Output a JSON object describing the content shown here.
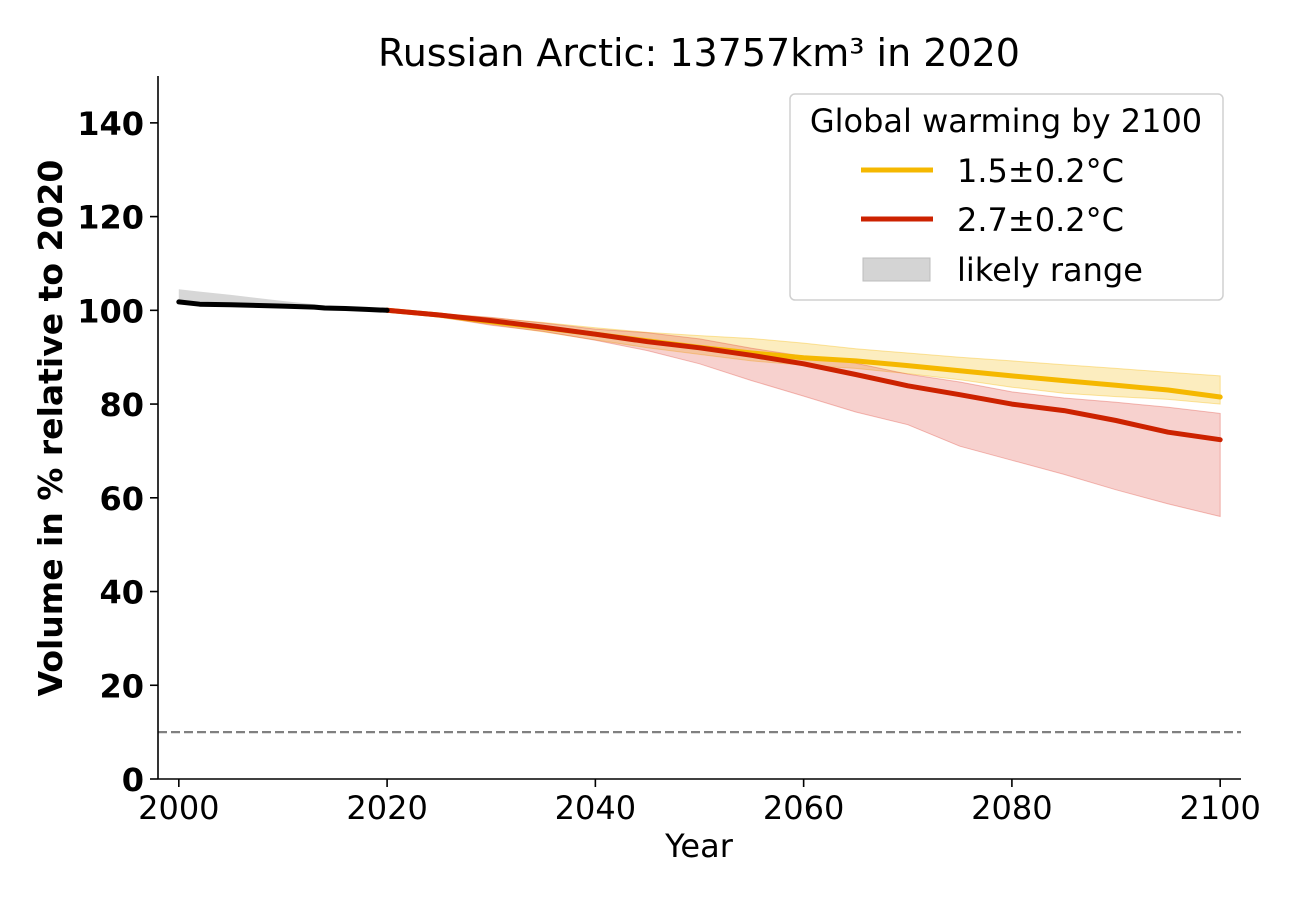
{
  "chart_data": {
    "type": "line",
    "title": "Russian Arctic: 13757km³ in 2020",
    "xlabel": "Year",
    "ylabel": "Volume in % relative to 2020",
    "xlim": [
      1998,
      2102
    ],
    "ylim": [
      0,
      150
    ],
    "xticks": [
      2000,
      2020,
      2040,
      2060,
      2080,
      2100
    ],
    "yticks": [
      0,
      20,
      40,
      60,
      80,
      100,
      120,
      140
    ],
    "grid": false,
    "legend": {
      "title": "Global warming by 2100",
      "position": "top-right",
      "entries": [
        {
          "label": "1.5±0.2°C",
          "color": "#f5b800",
          "kind": "line"
        },
        {
          "label": "2.7±0.2°C",
          "color": "#cc2200",
          "kind": "line"
        },
        {
          "label": "likely range",
          "color": "#d4d4d4",
          "kind": "patch"
        }
      ]
    },
    "reference_line": {
      "y": 10,
      "style": "dashed",
      "color": "#808080"
    },
    "historical": {
      "color": "#000000",
      "band_color": "#b0b0b0",
      "x": [
        2000,
        2002,
        2005,
        2010,
        2013,
        2014,
        2016,
        2018,
        2020
      ],
      "y": [
        101.8,
        101.3,
        101.2,
        100.9,
        100.7,
        100.5,
        100.4,
        100.2,
        100.0
      ],
      "lower": [
        101.5,
        101.2,
        101.1,
        100.9,
        100.6,
        100.5,
        100.4,
        100.2,
        100.0
      ],
      "upper": [
        104.5,
        104.0,
        103.3,
        102.0,
        101.3,
        101.0,
        100.8,
        100.4,
        100.0
      ]
    },
    "series": [
      {
        "name": "1.5±0.2°C",
        "color": "#f5b800",
        "band_color": "#f5b800",
        "x": [
          2020,
          2025,
          2030,
          2035,
          2040,
          2045,
          2050,
          2055,
          2060,
          2065,
          2070,
          2075,
          2080,
          2085,
          2090,
          2095,
          2100
        ],
        "y": [
          100,
          99.0,
          97.6,
          96.3,
          94.9,
          93.5,
          92.1,
          90.9,
          89.9,
          89.2,
          88.2,
          87.1,
          86.0,
          85.0,
          84.0,
          83.0,
          81.5
        ],
        "lower": [
          100,
          98.5,
          97.0,
          95.4,
          93.7,
          92.0,
          90.6,
          89.2,
          88.3,
          87.6,
          86.5,
          85.2,
          83.6,
          82.3,
          81.6,
          81.0,
          80.0
        ],
        "upper": [
          100,
          99.4,
          98.4,
          97.4,
          96.3,
          95.3,
          94.6,
          94.0,
          93.0,
          91.8,
          90.9,
          90.0,
          89.2,
          88.4,
          87.6,
          86.8,
          86.0
        ]
      },
      {
        "name": "2.7±0.2°C",
        "color": "#cc2200",
        "band_color": "#e0483a",
        "x": [
          2020,
          2025,
          2030,
          2035,
          2040,
          2045,
          2050,
          2055,
          2060,
          2065,
          2070,
          2075,
          2080,
          2085,
          2090,
          2095,
          2100
        ],
        "y": [
          100,
          99.0,
          97.8,
          96.4,
          94.9,
          93.3,
          92.0,
          90.4,
          88.6,
          86.3,
          83.9,
          82.0,
          80.0,
          78.6,
          76.5,
          74.0,
          72.4
        ],
        "lower": [
          100,
          98.6,
          96.8,
          95.5,
          93.6,
          91.4,
          88.6,
          85.0,
          81.7,
          78.3,
          75.6,
          71.0,
          68.0,
          65.0,
          61.7,
          58.7,
          56.0
        ],
        "upper": [
          100,
          99.3,
          98.5,
          97.3,
          96.0,
          95.2,
          93.9,
          91.9,
          90.2,
          88.7,
          86.4,
          84.7,
          82.6,
          81.3,
          80.4,
          79.3,
          78.0
        ]
      }
    ]
  }
}
